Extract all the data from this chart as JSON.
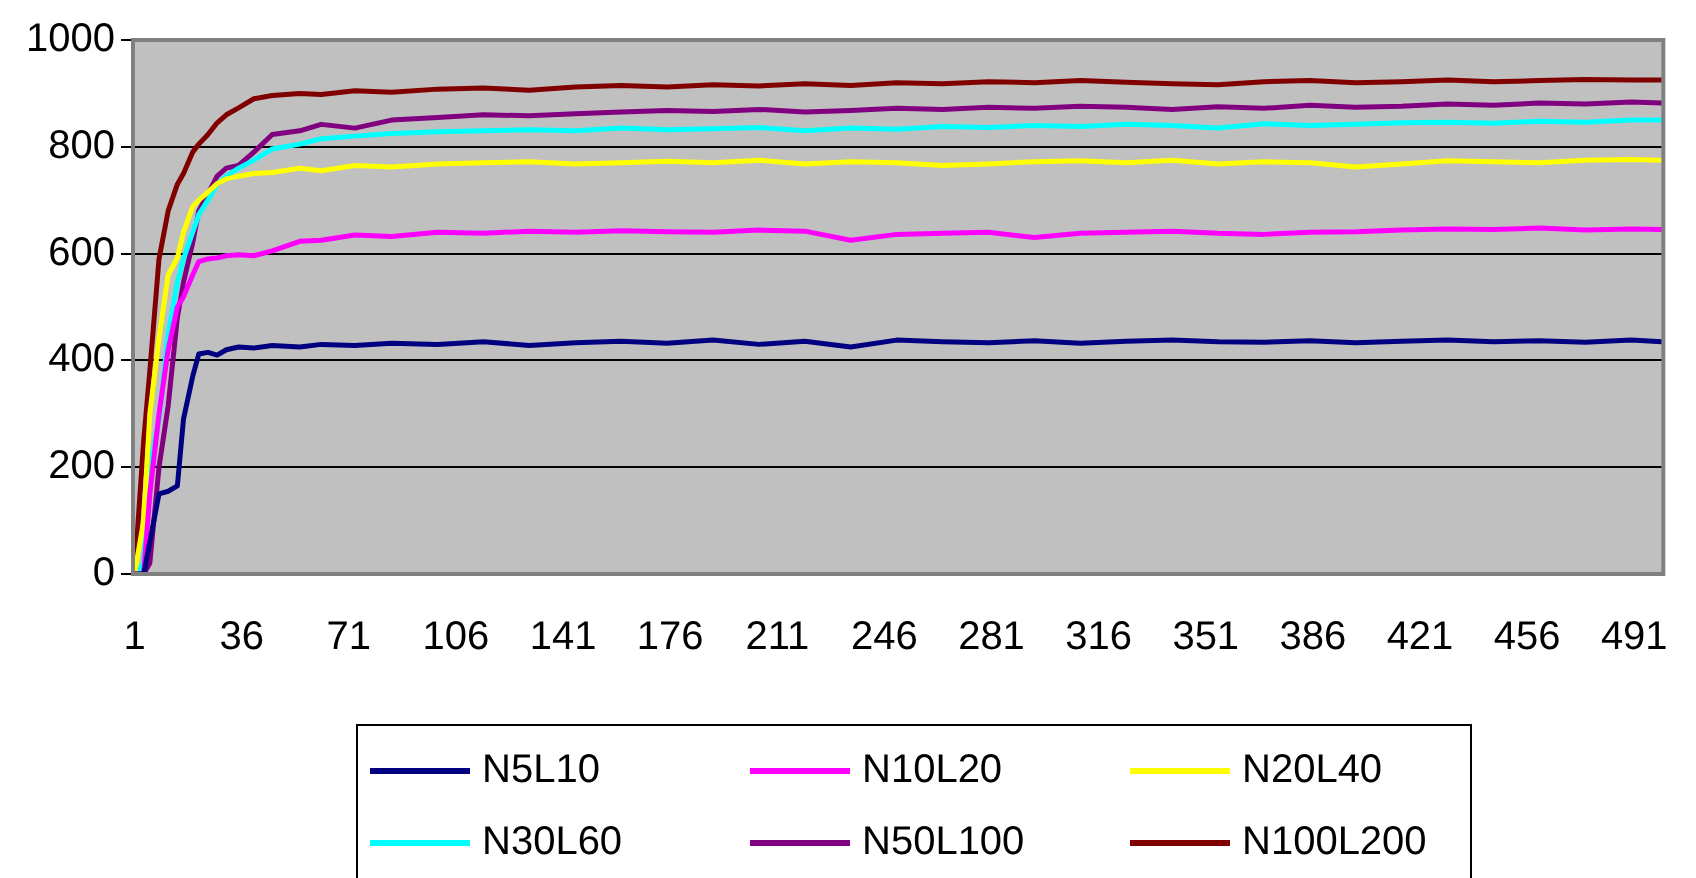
{
  "chart_data": {
    "type": "line",
    "x": [
      1,
      4,
      6,
      9,
      12,
      15,
      17,
      20,
      22,
      25,
      28,
      31,
      35,
      40,
      46,
      55,
      62,
      73,
      85,
      100,
      115,
      130,
      145,
      160,
      175,
      190,
      205,
      220,
      235,
      250,
      265,
      280,
      295,
      310,
      325,
      340,
      355,
      370,
      385,
      400,
      415,
      430,
      445,
      460,
      475,
      490,
      500
    ],
    "xlim": [
      0.5,
      500.5
    ],
    "xticks": [
      1,
      36,
      71,
      106,
      141,
      176,
      211,
      246,
      281,
      316,
      351,
      386,
      421,
      456,
      491
    ],
    "ylim": [
      0,
      1000
    ],
    "yticks": [
      0,
      200,
      400,
      600,
      800,
      1000
    ],
    "grid": "y",
    "legend": "bottom",
    "marker": "none",
    "line_style": "solid",
    "series": [
      {
        "name": "N5L10",
        "color": "#000080",
        "values": [
          0,
          0,
          60,
          150,
          155,
          165,
          290,
          370,
          412,
          415,
          410,
          420,
          425,
          423,
          428,
          425,
          430,
          428,
          432,
          430,
          435,
          428,
          433,
          436,
          432,
          438,
          430,
          436,
          425,
          438,
          435,
          433,
          437,
          432,
          436,
          438,
          435,
          434,
          437,
          433,
          436,
          438,
          435,
          437,
          434,
          438,
          435
        ]
      },
      {
        "name": "N10L20",
        "color": "#ff00ff",
        "values": [
          0,
          0,
          150,
          300,
          420,
          500,
          519,
          560,
          585,
          590,
          592,
          596,
          598,
          596,
          605,
          623,
          625,
          635,
          632,
          640,
          638,
          642,
          640,
          643,
          641,
          640,
          644,
          642,
          625,
          636,
          638,
          640,
          630,
          638,
          640,
          642,
          638,
          636,
          640,
          641,
          644,
          646,
          645,
          648,
          644,
          646,
          645
        ]
      },
      {
        "name": "N20L40",
        "color": "#ffff00",
        "values": [
          0,
          100,
          300,
          442,
          560,
          592,
          640,
          688,
          700,
          715,
          731,
          740,
          745,
          750,
          752,
          760,
          755,
          765,
          762,
          768,
          770,
          772,
          768,
          770,
          773,
          770,
          775,
          768,
          772,
          770,
          765,
          768,
          772,
          774,
          770,
          775,
          768,
          772,
          770,
          762,
          768,
          774,
          772,
          770,
          775,
          776,
          775
        ]
      },
      {
        "name": "N30L60",
        "color": "#00ffff",
        "values": [
          0,
          20,
          200,
          290,
          450,
          546,
          590,
          640,
          673,
          700,
          730,
          745,
          760,
          775,
          796,
          805,
          815,
          820,
          825,
          828,
          830,
          832,
          830,
          835,
          832,
          834,
          836,
          830,
          835,
          833,
          838,
          836,
          840,
          838,
          842,
          840,
          835,
          843,
          840,
          842,
          845,
          846,
          844,
          848,
          846,
          850,
          850
        ]
      },
      {
        "name": "N50L100",
        "color": "#800080",
        "values": [
          0,
          0,
          20,
          200,
          315,
          480,
          546,
          620,
          680,
          712,
          745,
          760,
          765,
          790,
          823,
          830,
          842,
          835,
          850,
          855,
          860,
          858,
          862,
          865,
          868,
          866,
          870,
          865,
          868,
          872,
          870,
          874,
          872,
          876,
          874,
          870,
          875,
          872,
          878,
          874,
          876,
          880,
          878,
          882,
          880,
          884,
          882
        ]
      },
      {
        "name": "N100L200",
        "color": "#800000",
        "values": [
          0,
          250,
          380,
          590,
          680,
          730,
          750,
          790,
          805,
          823,
          845,
          860,
          873,
          890,
          896,
          900,
          898,
          905,
          902,
          908,
          910,
          906,
          912,
          915,
          912,
          916,
          914,
          918,
          915,
          920,
          918,
          922,
          920,
          924,
          921,
          918,
          916,
          922,
          924,
          920,
          922,
          925,
          922,
          924,
          926,
          925,
          925
        ]
      }
    ]
  }
}
